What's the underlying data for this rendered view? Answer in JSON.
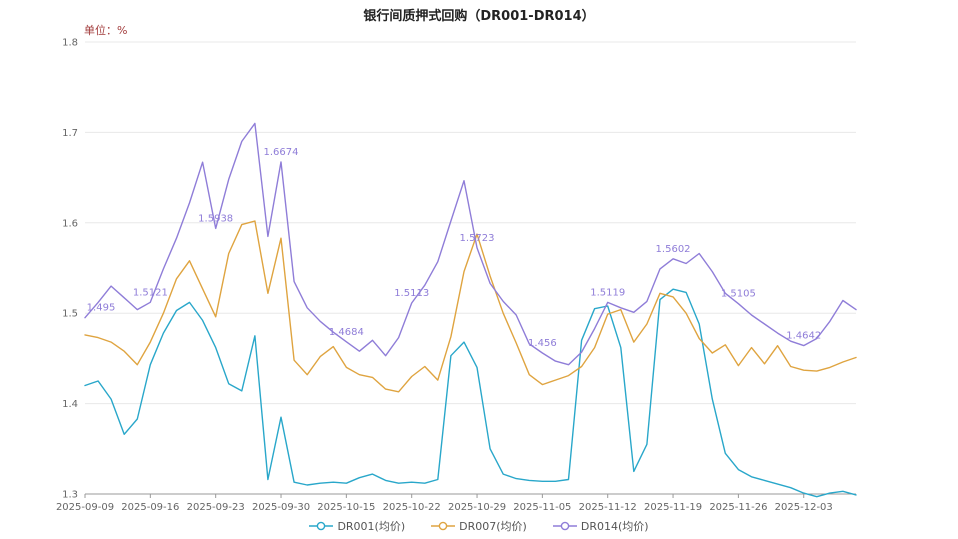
{
  "title": "银行间质押式回购（DR001-DR014）",
  "unit_label": "单位：%",
  "colors": {
    "grid": "#e8e8e8",
    "axis": "#999999",
    "tick_text": "#666666",
    "title_text": "#222222",
    "unit_text": "#a23c3c",
    "point_label": "#8f7dd8"
  },
  "chart_data": {
    "type": "line",
    "ylim": [
      1.3,
      1.8
    ],
    "y_ticks": [
      1.3,
      1.4,
      1.5,
      1.6,
      1.7,
      1.8
    ],
    "x_tick_indices": [
      0,
      5,
      10,
      15,
      20,
      25,
      30,
      35,
      40,
      45,
      50,
      55
    ],
    "x_tick_labels": [
      "2025-09-09",
      "2025-09-16",
      "2025-09-23",
      "2025-09-30",
      "2025-10-15",
      "2025-10-22",
      "2025-10-29",
      "2025-11-05",
      "2025-11-12",
      "2025-11-19",
      "2025-11-26",
      "2025-12-03"
    ],
    "legend_position": "bottom",
    "grid": "horizontal-only",
    "series": [
      {
        "id": "dr001",
        "name": "DR001(均价)",
        "color": "#29a7ca",
        "values": [
          1.42,
          1.425,
          1.405,
          1.366,
          1.383,
          1.443,
          1.478,
          1.503,
          1.512,
          1.492,
          1.462,
          1.422,
          1.414,
          1.475,
          1.316,
          1.385,
          1.313,
          1.31,
          1.312,
          1.313,
          1.312,
          1.318,
          1.322,
          1.315,
          1.312,
          1.313,
          1.312,
          1.316,
          1.453,
          1.468,
          1.44,
          1.35,
          1.322,
          1.317,
          1.315,
          1.314,
          1.314,
          1.316,
          1.47,
          1.505,
          1.508,
          1.462,
          1.325,
          1.355,
          1.515,
          1.5265,
          1.523,
          1.488,
          1.405,
          1.345,
          1.327,
          1.319,
          1.315,
          1.311,
          1.307,
          1.301,
          1.297,
          1.301,
          1.303,
          1.299
        ]
      },
      {
        "id": "dr007",
        "name": "DR007(均价)",
        "color": "#dfa440",
        "values": [
          1.476,
          1.473,
          1.468,
          1.458,
          1.443,
          1.468,
          1.5,
          1.538,
          1.558,
          1.527,
          1.496,
          1.566,
          1.598,
          1.602,
          1.522,
          1.583,
          1.448,
          1.432,
          1.452,
          1.463,
          1.44,
          1.432,
          1.429,
          1.416,
          1.413,
          1.43,
          1.441,
          1.426,
          1.474,
          1.546,
          1.5875,
          1.541,
          1.5,
          1.467,
          1.432,
          1.421,
          1.426,
          1.431,
          1.441,
          1.462,
          1.499,
          1.504,
          1.468,
          1.488,
          1.522,
          1.518,
          1.5,
          1.472,
          1.456,
          1.465,
          1.442,
          1.462,
          1.444,
          1.464,
          1.441,
          1.437,
          1.436,
          1.44,
          1.446,
          1.451
        ]
      },
      {
        "id": "dr014",
        "name": "DR014(均价)",
        "color": "#8f7dd8",
        "values": [
          1.495,
          1.512,
          1.53,
          1.517,
          1.504,
          1.5121,
          1.549,
          1.583,
          1.622,
          1.667,
          1.5938,
          1.648,
          1.69,
          1.71,
          1.585,
          1.6674,
          1.535,
          1.506,
          1.491,
          1.479,
          1.4684,
          1.458,
          1.47,
          1.453,
          1.473,
          1.5113,
          1.531,
          1.557,
          1.602,
          1.6466,
          1.5723,
          1.533,
          1.513,
          1.498,
          1.466,
          1.456,
          1.447,
          1.443,
          1.457,
          1.483,
          1.5119,
          1.506,
          1.501,
          1.513,
          1.549,
          1.5602,
          1.555,
          1.566,
          1.546,
          1.522,
          1.5105,
          1.498,
          1.488,
          1.478,
          1.469,
          1.4642,
          1.472,
          1.491,
          1.514,
          1.504
        ],
        "point_labels": [
          {
            "i": 0,
            "t": "1.495"
          },
          {
            "i": 5,
            "t": "1.5121"
          },
          {
            "i": 10,
            "t": "1.5938"
          },
          {
            "i": 15,
            "t": "1.6674"
          },
          {
            "i": 20,
            "t": "1.4684"
          },
          {
            "i": 25,
            "t": "1.5113"
          },
          {
            "i": 30,
            "t": "1.5723"
          },
          {
            "i": 35,
            "t": "1.456"
          },
          {
            "i": 40,
            "t": "1.5119"
          },
          {
            "i": 45,
            "t": "1.5602"
          },
          {
            "i": 50,
            "t": "1.5105"
          },
          {
            "i": 55,
            "t": "1.4642"
          }
        ]
      }
    ]
  }
}
